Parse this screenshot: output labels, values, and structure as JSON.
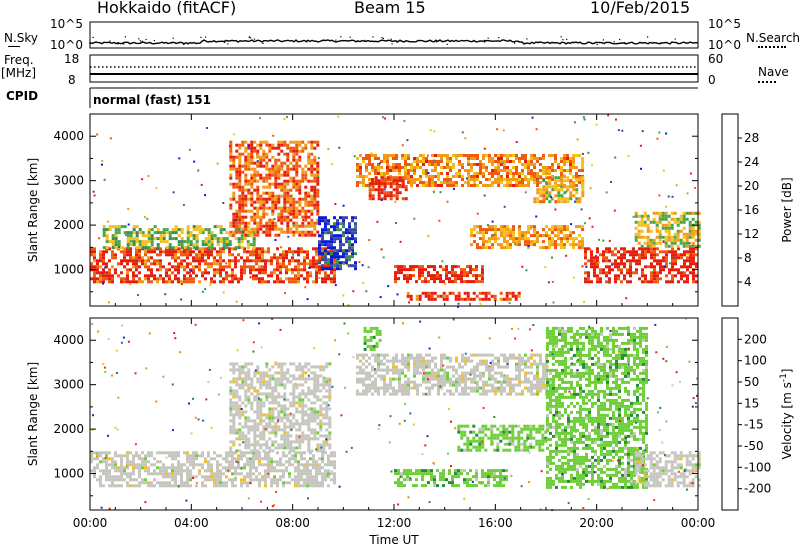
{
  "header": {
    "station": "Hokkaido (fitACF)",
    "beam": "Beam 15",
    "date": "10/Feb/2015"
  },
  "sky_panel": {
    "left_label": "N.Sky",
    "right_label": "N.Search",
    "left_ticks": [
      "10^5",
      "10^0"
    ],
    "right_ticks": [
      "10^5",
      "10^0"
    ]
  },
  "freq_panel": {
    "left_label_1": "Freq.",
    "left_label_2": "[MHz]",
    "left_ticks": [
      "18",
      "8"
    ],
    "right_ticks": [
      "60",
      "0"
    ],
    "right_label": "Nave"
  },
  "cpid_panel": {
    "label": "CPID",
    "mode_text": "normal (fast) 151"
  },
  "chart_data": [
    {
      "type": "heatmap",
      "quantity": "Power",
      "ylabel": "Slant Range [km]",
      "xlabel": "Time UT",
      "x_ticks": [
        "00:00",
        "04:00",
        "08:00",
        "12:00",
        "16:00",
        "20:00",
        "00:00"
      ],
      "x_range_hours": [
        0,
        24
      ],
      "y_ticks": [
        1000,
        2000,
        3000,
        4000
      ],
      "y_range_km": [
        180,
        4500
      ],
      "colorbar": {
        "label": "Power [dB]",
        "ticks": [
          4,
          8,
          12,
          16,
          20,
          24,
          28
        ],
        "range": [
          0,
          32
        ],
        "colors": [
          "#0a1bd8",
          "#3d49a8",
          "#3e8a55",
          "#4aa64a",
          "#f4c01e",
          "#f39a18",
          "#f05a10",
          "#e81c0c"
        ]
      },
      "regions": [
        {
          "t0": 0.0,
          "t1": 9.6,
          "r0": 700,
          "r1": 1500,
          "level": 0.88
        },
        {
          "t0": 0.5,
          "t1": 6.5,
          "r0": 1500,
          "r1": 2000,
          "level": 0.45
        },
        {
          "t0": 5.5,
          "t1": 9.0,
          "r0": 1800,
          "r1": 3900,
          "level": 0.8
        },
        {
          "t0": 9.0,
          "t1": 10.5,
          "r0": 1000,
          "r1": 2200,
          "level": 0.15
        },
        {
          "t0": 10.5,
          "t1": 19.5,
          "r0": 2900,
          "r1": 3600,
          "level": 0.72
        },
        {
          "t0": 11.0,
          "t1": 12.5,
          "r0": 2600,
          "r1": 3100,
          "level": 0.95
        },
        {
          "t0": 17.5,
          "t1": 19.5,
          "r0": 2500,
          "r1": 3100,
          "level": 0.6
        },
        {
          "t0": 15.0,
          "t1": 19.5,
          "r0": 1500,
          "r1": 2000,
          "level": 0.7
        },
        {
          "t0": 12.0,
          "t1": 15.5,
          "r0": 700,
          "r1": 1100,
          "level": 0.95
        },
        {
          "t0": 12.5,
          "t1": 17.0,
          "r0": 300,
          "r1": 500,
          "level": 0.9
        },
        {
          "t0": 19.5,
          "t1": 24.0,
          "r0": 700,
          "r1": 1500,
          "level": 0.95
        },
        {
          "t0": 21.5,
          "t1": 24.0,
          "r0": 1500,
          "r1": 2300,
          "level": 0.55
        }
      ]
    },
    {
      "type": "heatmap",
      "quantity": "Velocity",
      "ylabel": "Slant Range [km]",
      "xlabel": "Time UT",
      "x_ticks": [
        "00:00",
        "04:00",
        "08:00",
        "12:00",
        "16:00",
        "20:00",
        "00:00"
      ],
      "x_range_hours": [
        0,
        24
      ],
      "y_ticks": [
        1000,
        2000,
        3000,
        4000
      ],
      "y_range_km": [
        180,
        4500
      ],
      "colorbar": {
        "label_main": "Velocity [m s",
        "label_sup": "-1",
        "label_end": "]",
        "ticks": [
          "200",
          "100",
          "50",
          "15",
          "-15",
          "-50",
          "-100",
          "-200"
        ],
        "colors": [
          "#1f2ea8",
          "#2f6aa0",
          "#2a8a3c",
          "#6fcf3a",
          "#c6c6be",
          "#f4c01e",
          "#f08a18",
          "#f04010",
          "#e81c0c"
        ]
      },
      "regions": [
        {
          "t0": 0.0,
          "t1": 9.6,
          "r0": 700,
          "r1": 1500,
          "cls": "gray"
        },
        {
          "t0": 5.5,
          "t1": 9.5,
          "r0": 1500,
          "r1": 3500,
          "cls": "gray"
        },
        {
          "t0": 10.5,
          "t1": 18.0,
          "r0": 2800,
          "r1": 3700,
          "cls": "gray"
        },
        {
          "t0": 10.8,
          "t1": 11.5,
          "r0": 3800,
          "r1": 4300,
          "cls": "green"
        },
        {
          "t0": 14.5,
          "t1": 18.0,
          "r0": 1500,
          "r1": 2100,
          "cls": "green"
        },
        {
          "t0": 12.0,
          "t1": 16.5,
          "r0": 700,
          "r1": 1100,
          "cls": "green"
        },
        {
          "t0": 18.0,
          "t1": 22.0,
          "r0": 700,
          "r1": 4300,
          "cls": "green"
        },
        {
          "t0": 21.5,
          "t1": 24.0,
          "r0": 700,
          "r1": 1500,
          "cls": "gray"
        }
      ]
    }
  ]
}
